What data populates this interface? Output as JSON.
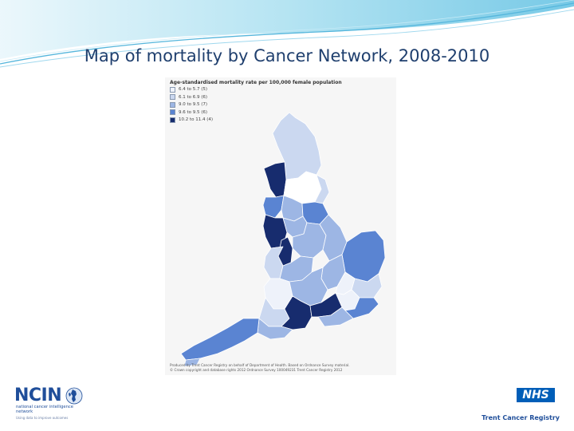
{
  "title": "Map of mortality by Cancer Network, 2008-2010",
  "legend": {
    "title": "Age-standardised mortality rate per 100,000 female population",
    "items": [
      {
        "label": "6.4 to 5.7 (5)",
        "color": "#eef2fa"
      },
      {
        "label": "6.1 to 6.9 (6)",
        "color": "#cbd8f0"
      },
      {
        "label": "9.0 to 9.5 (7)",
        "color": "#9db6e4"
      },
      {
        "label": "9.6 to 9.5 (6)",
        "color": "#5a84d2"
      },
      {
        "label": "10.2 to 11.4 (4)",
        "color": "#172c6e"
      }
    ]
  },
  "credit": {
    "line1": "Produced by Trent Cancer Registry on behalf of Department of Health. Based on Ordnance Survey material.",
    "line2": "© Crown copyright and database rights 2012 Ordnance Survey 100049231   Trent Cancer Registry 2012"
  },
  "logos": {
    "ncin_name": "NCIN",
    "ncin_subtitle": "national cancer intelligence network",
    "ncin_tagline": "Using data to improve outcomes",
    "nhs": "NHS",
    "trent": "Trent Cancer Registry"
  },
  "colors": {
    "title_text": "#1f3f6e",
    "header_wave": "#7fcde8",
    "map_background": "#f6f6f6",
    "nhs_blue": "#005eb8"
  }
}
